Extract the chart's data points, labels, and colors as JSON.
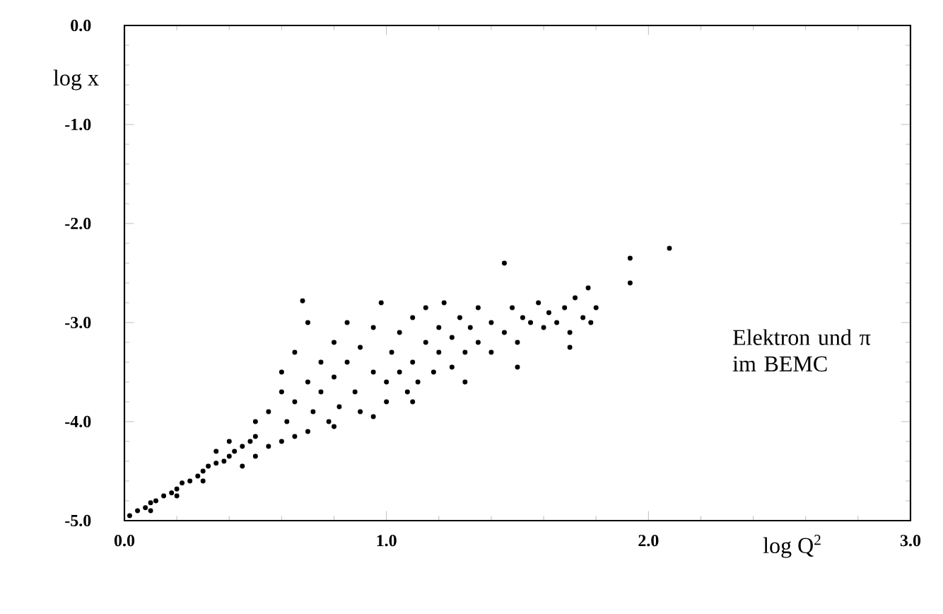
{
  "chart_data": {
    "type": "scatter",
    "xlabel": "log Q$^{2}$",
    "ylabel": "log x",
    "annotations": [
      "Elektron und π im BEMC"
    ],
    "xlim": [
      0,
      3
    ],
    "ylim": [
      -5,
      0
    ],
    "xticks": [
      {
        "value": 0,
        "label": "0.0"
      },
      {
        "value": 1,
        "label": "1.0"
      },
      {
        "value": 2,
        "label": "2.0"
      },
      {
        "value": 3,
        "label": "3.0"
      }
    ],
    "yticks": [
      {
        "value": 0,
        "label": "0.0"
      },
      {
        "value": -1,
        "label": "-1.0"
      },
      {
        "value": -2,
        "label": "-2.0"
      },
      {
        "value": -3,
        "label": "-3.0"
      },
      {
        "value": -4,
        "label": "-4.0"
      },
      {
        "value": -5,
        "label": "-5.0"
      }
    ],
    "grid": false,
    "marker": "circle",
    "series": [
      {
        "color": "#000000",
        "x": [
          0.02,
          0.05,
          0.08,
          0.1,
          0.12,
          0.15,
          0.18,
          0.2,
          0.22,
          0.25,
          0.28,
          0.3,
          0.32,
          0.35,
          0.38,
          0.4,
          0.42,
          0.45,
          0.48,
          0.5,
          0.1,
          0.2,
          0.3,
          0.35,
          0.4,
          0.45,
          0.5,
          0.5,
          0.55,
          0.55,
          0.6,
          0.6,
          0.6,
          0.62,
          0.65,
          0.65,
          0.68,
          0.7,
          0.7,
          0.7,
          0.72,
          0.75,
          0.75,
          0.78,
          0.8,
          0.8,
          0.82,
          0.85,
          0.85,
          0.88,
          0.9,
          0.9,
          0.95,
          0.95,
          0.98,
          1.0,
          1.0,
          1.02,
          1.05,
          1.05,
          1.08,
          1.1,
          1.1,
          1.12,
          1.15,
          1.15,
          1.18,
          1.2,
          1.2,
          1.22,
          1.25,
          1.25,
          1.28,
          1.3,
          1.32,
          1.35,
          1.35,
          1.4,
          1.4,
          1.45,
          1.45,
          1.48,
          1.5,
          1.52,
          1.55,
          1.58,
          1.6,
          1.62,
          1.65,
          1.68,
          1.7,
          1.72,
          1.75,
          1.77,
          1.78,
          1.8,
          1.93,
          1.93,
          2.08,
          0.65,
          0.8,
          0.95,
          1.1,
          1.3,
          1.5,
          1.7
        ],
        "values": [
          -4.95,
          -4.9,
          -4.87,
          -4.82,
          -4.8,
          -4.75,
          -4.72,
          -4.68,
          -4.62,
          -4.6,
          -4.55,
          -4.5,
          -4.45,
          -4.42,
          -4.4,
          -4.35,
          -4.3,
          -4.25,
          -4.2,
          -4.15,
          -4.9,
          -4.75,
          -4.6,
          -4.3,
          -4.2,
          -4.45,
          -4.35,
          -4.0,
          -4.25,
          -3.9,
          -4.2,
          -3.7,
          -3.5,
          -4.0,
          -3.3,
          -3.8,
          -2.78,
          -3.0,
          -3.6,
          -4.1,
          -3.9,
          -3.4,
          -3.7,
          -4.0,
          -3.2,
          -3.55,
          -3.85,
          -3.0,
          -3.4,
          -3.7,
          -3.9,
          -3.25,
          -3.5,
          -3.05,
          -2.8,
          -3.6,
          -3.8,
          -3.3,
          -3.1,
          -3.5,
          -3.7,
          -2.95,
          -3.4,
          -3.6,
          -3.2,
          -2.85,
          -3.5,
          -3.05,
          -3.3,
          -2.8,
          -3.45,
          -3.15,
          -2.95,
          -3.3,
          -3.05,
          -2.85,
          -3.2,
          -3.0,
          -3.3,
          -2.4,
          -3.1,
          -2.85,
          -3.2,
          -2.95,
          -3.0,
          -2.8,
          -3.05,
          -2.9,
          -3.0,
          -2.85,
          -3.1,
          -2.75,
          -2.95,
          -2.65,
          -3.0,
          -2.85,
          -2.35,
          -2.6,
          -2.25,
          -4.15,
          -4.05,
          -3.95,
          -3.8,
          -3.6,
          -3.45,
          -3.25
        ]
      }
    ]
  }
}
